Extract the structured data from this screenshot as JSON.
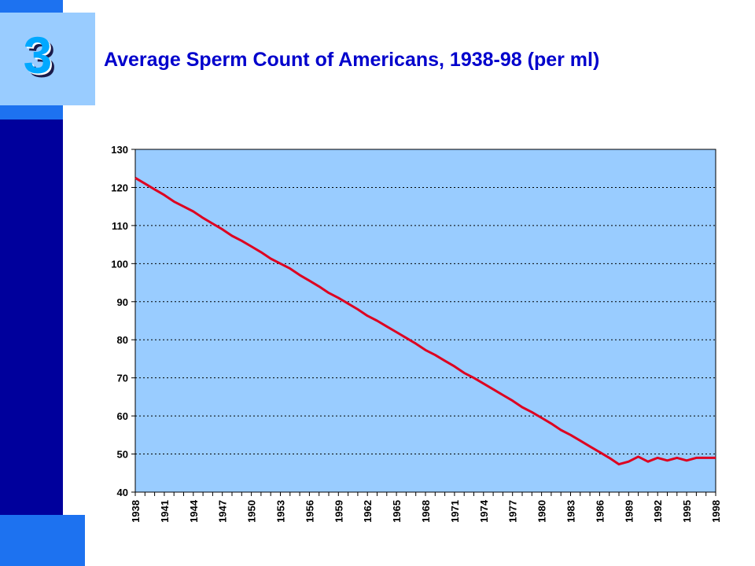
{
  "slide": {
    "number": "3",
    "title": "Average Sperm Count of Americans, 1938-98 (per ml)"
  },
  "colors": {
    "sidebar": "#00009c",
    "accent": "#1d72f0",
    "number_box": "#99ccff",
    "title": "#0000cc",
    "plot_background": "#99ccff",
    "line": "#dd0020"
  },
  "chart_data": {
    "type": "line",
    "title": "Average Sperm Count of Americans, 1938-98 (per ml)",
    "xlabel": "",
    "ylabel": "",
    "ylim": [
      40,
      130
    ],
    "yticks": [
      130,
      120,
      110,
      100,
      90,
      80,
      70,
      60,
      50,
      40
    ],
    "xticks": [
      "1938",
      "1941",
      "1944",
      "1947",
      "1950",
      "1953",
      "1956",
      "1959",
      "1962",
      "1965",
      "1968",
      "1971",
      "1974",
      "1977",
      "1980",
      "1983",
      "1986",
      "1989",
      "1992",
      "1995",
      "1998"
    ],
    "grid": "horizontal dotted",
    "legend": "none",
    "series": [
      {
        "x": [
          1938,
          1939,
          1940,
          1941,
          1942,
          1943,
          1944,
          1945,
          1946,
          1947,
          1948,
          1949,
          1950,
          1951,
          1952,
          1953,
          1954,
          1955,
          1956,
          1957,
          1958,
          1959,
          1960,
          1961,
          1962,
          1963,
          1964,
          1965,
          1966,
          1967,
          1968,
          1969,
          1970,
          1971,
          1972,
          1973,
          1974,
          1975,
          1976,
          1977,
          1978,
          1979,
          1980,
          1981,
          1982,
          1983,
          1984,
          1985,
          1986,
          1987,
          1988,
          1989,
          1990,
          1991,
          1992,
          1993,
          1994,
          1995,
          1996,
          1997,
          1998
        ],
        "values": [
          122.5,
          121.0,
          119.5,
          118.0,
          116.3,
          115.0,
          113.7,
          112.0,
          110.5,
          109.0,
          107.3,
          106.0,
          104.5,
          103.0,
          101.3,
          100.0,
          98.7,
          97.0,
          95.5,
          94.0,
          92.3,
          91.0,
          89.5,
          88.0,
          86.3,
          85.0,
          83.5,
          82.0,
          80.5,
          79.0,
          77.3,
          76.0,
          74.5,
          73.0,
          71.3,
          70.0,
          68.5,
          67.0,
          65.5,
          64.0,
          62.3,
          61.0,
          59.5,
          58.0,
          56.3,
          55.0,
          53.5,
          52.0,
          50.5,
          49.0,
          47.3,
          48.0,
          49.3,
          48.0,
          49.0,
          48.3,
          49.0,
          48.3,
          49.0,
          49.0,
          49.0
        ]
      }
    ]
  }
}
